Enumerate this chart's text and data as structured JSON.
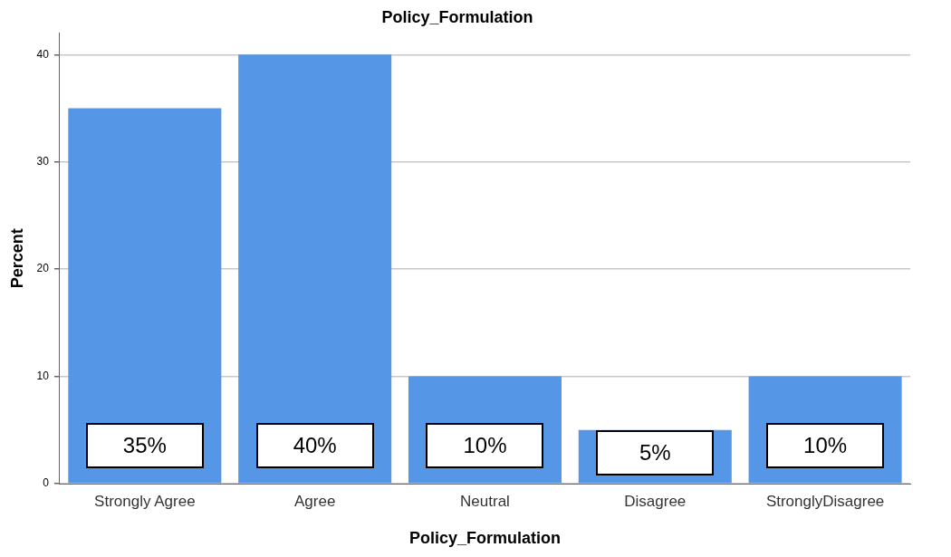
{
  "chart_data": {
    "type": "bar",
    "title": "Policy_Formulation",
    "xlabel": "Policy_Formulation",
    "ylabel": "Percent",
    "categories": [
      "Strongly Agree",
      "Agree",
      "Neutral",
      "Disagree",
      "StronglyDisagree"
    ],
    "values": [
      35,
      40,
      10,
      5,
      10
    ],
    "value_labels": [
      "35%",
      "40%",
      "10%",
      "5%",
      "10%"
    ],
    "color": "#5596e6",
    "ylim": [
      0,
      42
    ],
    "yticks": [
      0,
      10,
      20,
      30,
      40
    ],
    "grid": "y",
    "legend": false
  }
}
